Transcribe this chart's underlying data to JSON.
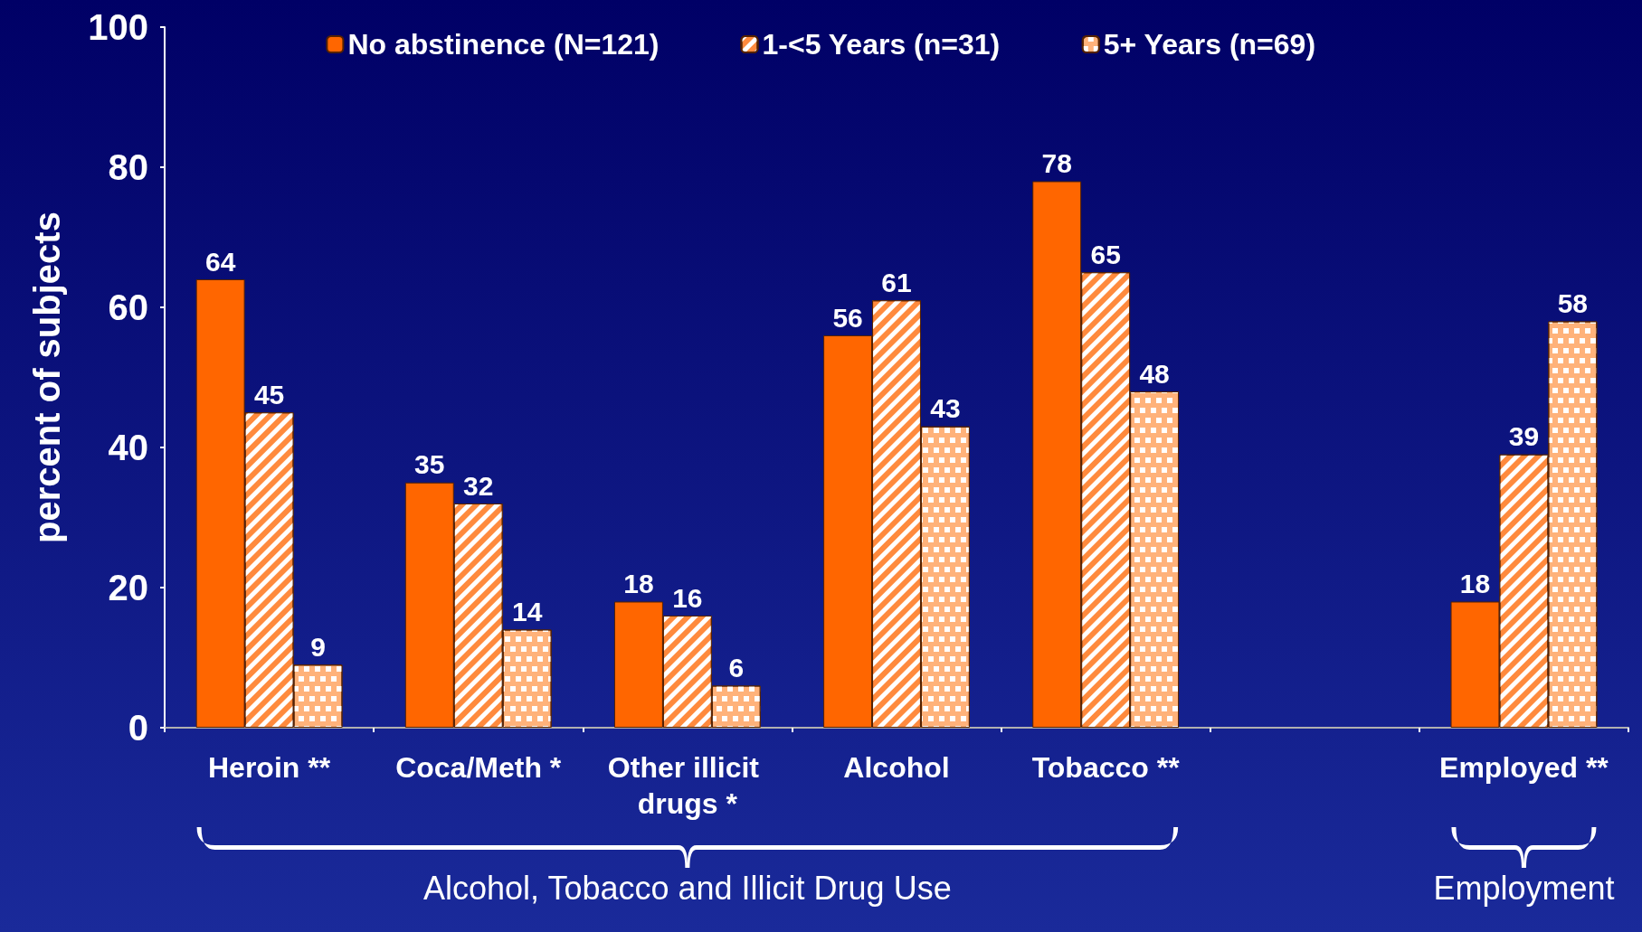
{
  "chart_data": {
    "type": "bar",
    "categories": [
      "Heroin **",
      "Coca/Meth *",
      "Other illicit drugs *",
      "Alcohol",
      "Tobacco **",
      null,
      "Employed **"
    ],
    "series": [
      {
        "name": "No abstinence (N=121)",
        "color": "#ff6600",
        "values": [
          64,
          35,
          18,
          56,
          78,
          null,
          18
        ]
      },
      {
        "name": "1-<5 Years (n=31)",
        "color": "#ff8a3d",
        "values": [
          45,
          32,
          16,
          61,
          65,
          null,
          39
        ]
      },
      {
        "name": "5+ Years (n=69)",
        "color": "#ffb27a",
        "values": [
          9,
          14,
          6,
          43,
          48,
          null,
          58
        ]
      }
    ],
    "ylabel": "percent of subjects",
    "ylim": [
      0,
      100
    ],
    "yticks": [
      0,
      20,
      40,
      60,
      80,
      100
    ],
    "data_labels": true,
    "grid": false,
    "legend": "top",
    "annotations": [
      "Alcohol, Tobacco and Illicit Drug Use",
      "Employment"
    ]
  }
}
